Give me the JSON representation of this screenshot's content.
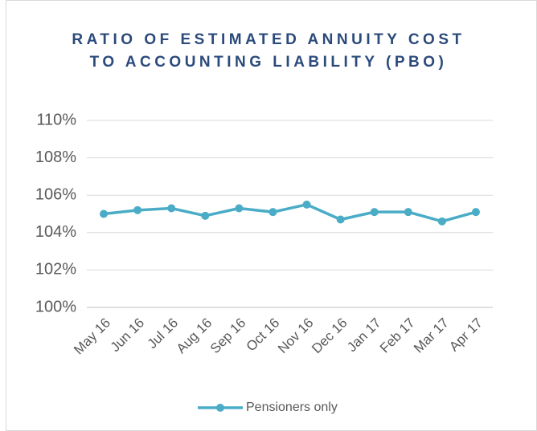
{
  "chart_data": {
    "type": "line",
    "title": "RATIO OF ESTIMATED ANNUITY COST TO ACCOUNTING LIABILITY (PBO)",
    "categories": [
      "May 16",
      "Jun 16",
      "Jul 16",
      "Aug 16",
      "Sep 16",
      "Oct 16",
      "Nov 16",
      "Dec 16",
      "Jan 17",
      "Feb 17",
      "Mar 17",
      "Apr 17"
    ],
    "series": [
      {
        "name": "Pensioners only",
        "color": "#4aacc6",
        "values": [
          105.0,
          105.2,
          105.3,
          104.9,
          105.3,
          105.1,
          105.5,
          104.7,
          105.1,
          105.1,
          104.6,
          105.1
        ]
      }
    ],
    "ylim": [
      100,
      110
    ],
    "yticks": [
      {
        "value": 100,
        "label": "100%"
      },
      {
        "value": 102,
        "label": "102%"
      },
      {
        "value": 104,
        "label": "104%"
      },
      {
        "value": 106,
        "label": "106%"
      },
      {
        "value": 108,
        "label": "108%"
      },
      {
        "value": 110,
        "label": "110%"
      }
    ],
    "grid": true,
    "legend": "bottom"
  }
}
